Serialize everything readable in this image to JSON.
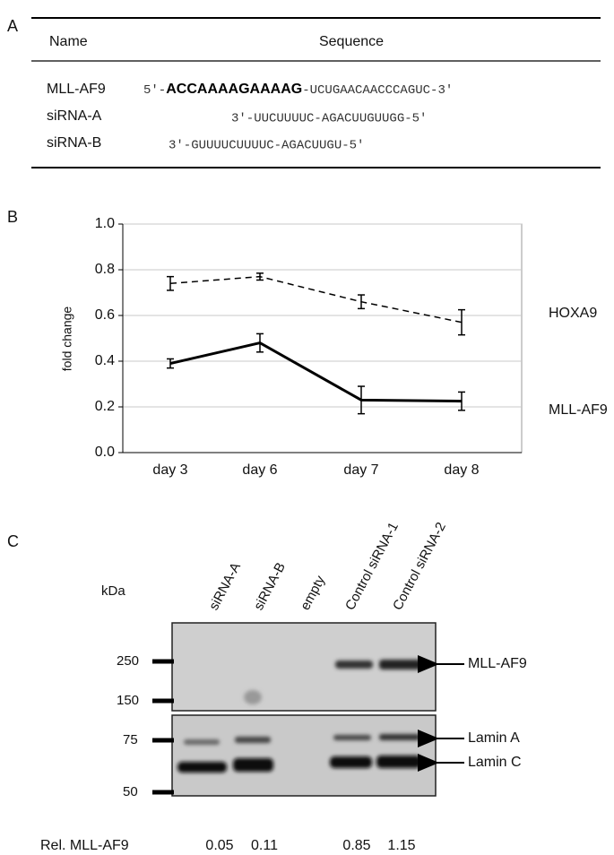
{
  "panels": {
    "a": "A",
    "b": "B",
    "c": "C"
  },
  "table": {
    "header": [
      "Name",
      "Sequence"
    ],
    "rows": [
      {
        "name": "MLL-AF9",
        "sequence": [
          "5′-",
          "ACCAAAAGAAAAG",
          "-UCUGAACAACCCAGUC-3′"
        ]
      },
      {
        "name": "siRNA-A",
        "sequence": [
          "3′-UUCUUUUC-AGACUUGUUGG-5′"
        ]
      },
      {
        "name": "siRNA-B",
        "sequence": [
          "3′-GUUUUCUUUUC-AGACUUGU-5′"
        ]
      }
    ]
  },
  "chart_data": {
    "type": "line",
    "y_label": "fold change",
    "categories": [
      "day 3",
      "day 6",
      "day 7",
      "day 8"
    ],
    "series": [
      {
        "name": "HOXA9",
        "color": "#000000",
        "dashed": true,
        "values": [
          0.74,
          0.77,
          0.66,
          0.57
        ],
        "errors": [
          0.03,
          0.015,
          0.03,
          0.055
        ]
      },
      {
        "name": "MLL-AF9",
        "color": "#000000",
        "dashed": false,
        "values": [
          0.39,
          0.48,
          0.23,
          0.225
        ],
        "errors": [
          0.02,
          0.04,
          0.06,
          0.04
        ]
      }
    ],
    "ylim": [
      0,
      1
    ],
    "yticks": [
      {
        "value": 0,
        "label": "0.0"
      },
      {
        "value": 0.2,
        "label": "0.2"
      },
      {
        "value": 0.4,
        "label": "0.4"
      },
      {
        "value": 0.6,
        "label": "0.6"
      },
      {
        "value": 0.8,
        "label": "0.8"
      },
      {
        "value": 1,
        "label": "1.0"
      }
    ],
    "grid": true
  },
  "blot": {
    "unit": "kDa",
    "lanes": [
      "siRNA-A",
      "siRNA-B",
      "empty",
      "Control siRNA-1",
      "Control siRNA-2"
    ],
    "markers": [
      "250",
      "150",
      "75",
      "50"
    ],
    "bands": [
      "MLL-AF9",
      "Lamin A",
      "Lamin C"
    ],
    "quant_label": "Rel. MLL-AF9",
    "quant": [
      "0.05",
      "0.11",
      null,
      "0.85",
      "1.15"
    ]
  }
}
